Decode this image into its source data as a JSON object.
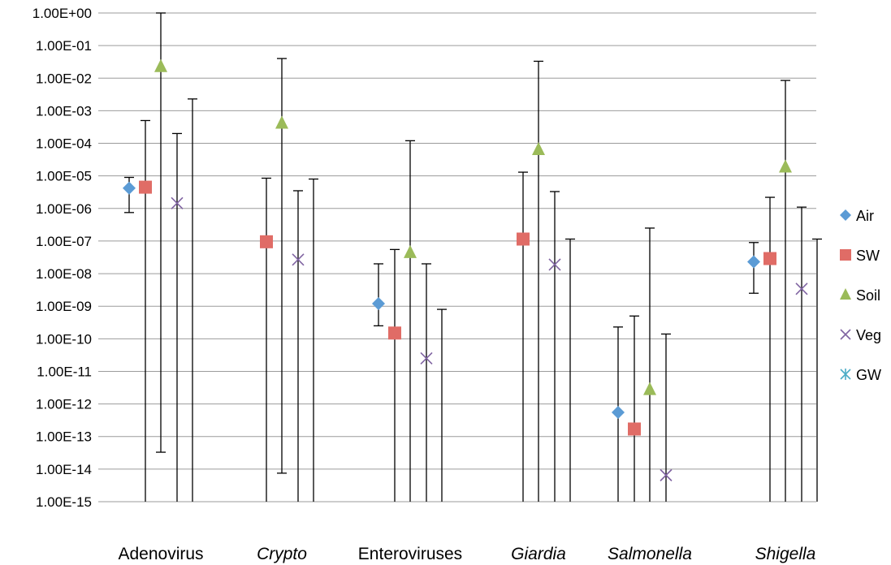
{
  "chart_data": {
    "type": "scatter",
    "y_scale": "log",
    "ylim": [
      "1.00E-15",
      "1.00E+00"
    ],
    "grid": true,
    "legend_position": "right",
    "y_tick_labels": [
      "1.00E+00",
      "1.00E-01",
      "1.00E-02",
      "1.00E-03",
      "1.00E-04",
      "1.00E-05",
      "1.00E-06",
      "1.00E-07",
      "1.00E-08",
      "1.00E-09",
      "1.00E-10",
      "1.00E-11",
      "1.00E-12",
      "1.00E-13",
      "1.00E-14",
      "1.00E-15"
    ],
    "categories": [
      {
        "label": "Adenovirus",
        "italic": false
      },
      {
        "label": "Crypto",
        "italic": true
      },
      {
        "label": "Enteroviruses",
        "italic": false
      },
      {
        "label": "Giardia",
        "italic": true
      },
      {
        "label": "Salmonella",
        "italic": true
      },
      {
        "label": "Shigella",
        "italic": true
      }
    ],
    "series": [
      {
        "name": "Air",
        "color": "#5b9bd5",
        "marker": "diamond",
        "values": [
          4.2e-06,
          null,
          1.2e-09,
          null,
          5.5e-13,
          2.3e-08
        ],
        "err_low": [
          7.5e-07,
          null,
          2.5e-10,
          null,
          1e-15,
          2.5e-09
        ],
        "err_high": [
          9e-06,
          null,
          2e-08,
          null,
          2.3e-10,
          9e-08
        ]
      },
      {
        "name": "SW",
        "color": "#e06c66",
        "marker": "square",
        "values": [
          4.5e-06,
          9.5e-08,
          1.5e-10,
          1.15e-07,
          1.7e-13,
          2.9e-08
        ],
        "err_low": [
          1e-15,
          1e-15,
          1e-15,
          1e-15,
          1e-15,
          1e-15
        ],
        "err_high": [
          0.0005,
          8.5e-06,
          5.5e-08,
          1.3e-05,
          5e-10,
          2.2e-06
        ]
      },
      {
        "name": "Soil",
        "color": "#9bbb59",
        "marker": "triangle",
        "values": [
          0.023,
          0.00042,
          4.5e-08,
          6.5e-05,
          2.8e-12,
          1.9e-05
        ],
        "err_low": [
          3.3e-14,
          7.5e-15,
          1e-15,
          1e-15,
          1e-15,
          1e-15
        ],
        "err_high": [
          1.0,
          0.04,
          0.00012,
          0.033,
          2.5e-07,
          0.0085
        ]
      },
      {
        "name": "Veg",
        "color": "#8064a2",
        "marker": "x",
        "values": [
          1.45e-06,
          2.7e-08,
          2.5e-11,
          1.9e-08,
          6.5e-15,
          3.4e-09
        ],
        "err_low": [
          1e-15,
          1e-15,
          1e-15,
          1e-15,
          1e-15,
          1e-15
        ],
        "err_high": [
          0.0002,
          3.5e-06,
          2e-08,
          3.3e-06,
          1.4e-10,
          1.1e-06
        ]
      },
      {
        "name": "GW",
        "color": "#4bacc6",
        "marker": "asterisk",
        "values": [
          null,
          null,
          null,
          null,
          null,
          null
        ],
        "err_low": [
          1e-15,
          1e-15,
          1e-15,
          1e-15,
          null,
          1e-15
        ],
        "err_high": [
          0.0023,
          8e-06,
          8e-10,
          1.15e-07,
          null,
          1.15e-07
        ]
      }
    ]
  }
}
